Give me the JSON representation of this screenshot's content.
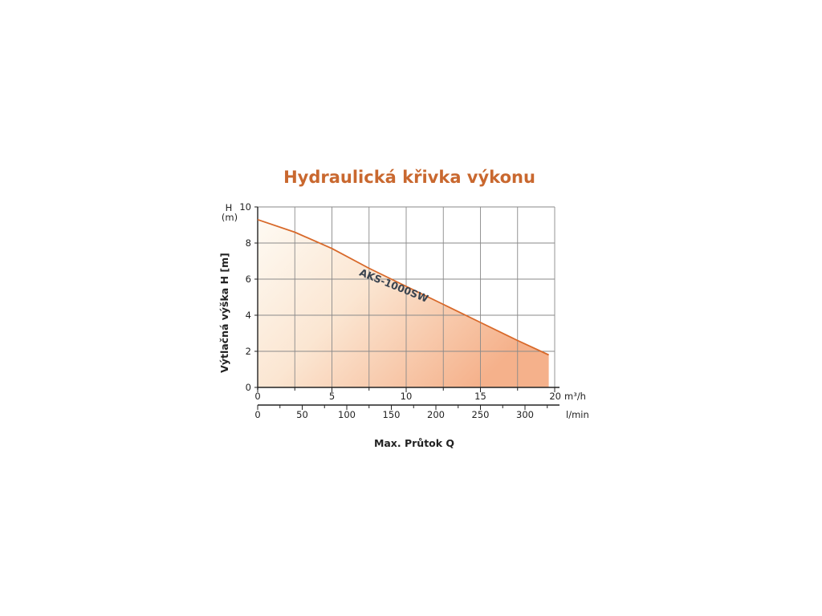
{
  "chart_data": {
    "type": "line",
    "title": "Hydraulická křivka výkonu",
    "ylabel": "Výtlačná výška H [m]",
    "ylabel_unit_top": "H",
    "ylabel_unit_bottom": "(m)",
    "xlabel": "Max. Průtok Q",
    "x_unit_top": "m³/h",
    "x_unit_bottom": "l/min",
    "xlim": [
      0,
      20
    ],
    "ylim": [
      0,
      10
    ],
    "xticks_top": [
      "0",
      "5",
      "10",
      "15",
      "20"
    ],
    "xticks_bottom": [
      "0",
      "50",
      "100",
      "150",
      "200",
      "250",
      "300"
    ],
    "yticks": [
      "0",
      "2",
      "4",
      "6",
      "8",
      "10"
    ],
    "grid": true,
    "series": [
      {
        "name": "AKS-1000SW",
        "x": [
          0,
          2.5,
          5,
          7.5,
          10,
          12.5,
          15,
          17.5,
          19.6
        ],
        "y": [
          9.3,
          8.6,
          7.7,
          6.6,
          5.6,
          4.6,
          3.6,
          2.6,
          1.8
        ]
      }
    ],
    "colors": {
      "line": "#d8692a",
      "title": "#c9682f",
      "fill_light": "#fdf3e6",
      "fill_dark": "#f6b792"
    }
  }
}
